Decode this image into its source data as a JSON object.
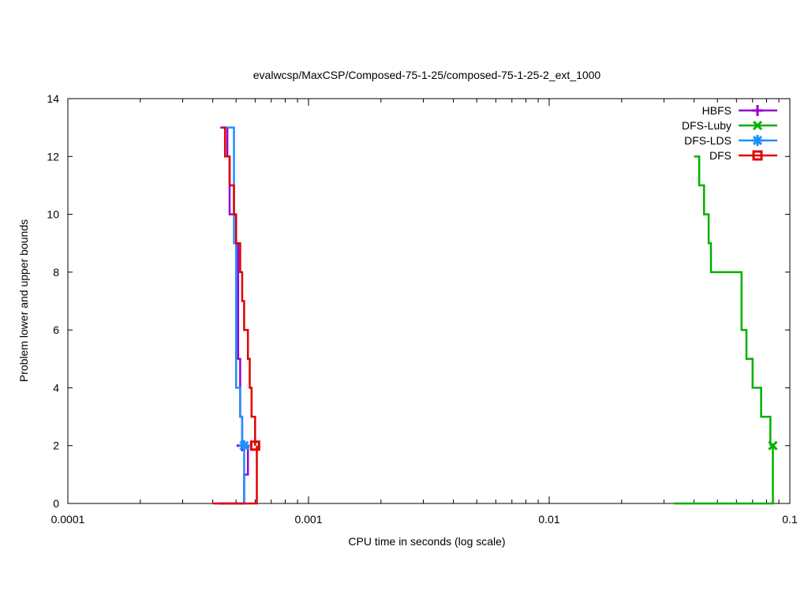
{
  "chart_data": {
    "type": "line",
    "title": "evalwcsp/MaxCSP/Composed-75-1-25/composed-75-1-25-2_ext_1000",
    "xlabel": "CPU time in seconds (log scale)",
    "ylabel": "Problem lower and upper bounds",
    "xscale": "log",
    "xlim": [
      0.0001,
      0.1
    ],
    "ylim": [
      0,
      14
    ],
    "x_ticks": [
      {
        "value": 0.0001,
        "label": "0.0001"
      },
      {
        "value": 0.001,
        "label": "0.001"
      },
      {
        "value": 0.01,
        "label": "0.01"
      },
      {
        "value": 0.1,
        "label": "0.1"
      }
    ],
    "y_ticks": [
      {
        "value": 0,
        "label": "0"
      },
      {
        "value": 2,
        "label": "2"
      },
      {
        "value": 4,
        "label": "4"
      },
      {
        "value": 6,
        "label": "6"
      },
      {
        "value": 8,
        "label": "8"
      },
      {
        "value": 10,
        "label": "10"
      },
      {
        "value": 12,
        "label": "12"
      },
      {
        "value": 14,
        "label": "14"
      }
    ],
    "grid": false,
    "legend": "top-right",
    "series": [
      {
        "name": "HBFS",
        "color": "#9400d3",
        "marker": "plus",
        "marker_point": [
          0.00053,
          2
        ],
        "upper": [
          [
            0.00043,
            13
          ],
          [
            0.00046,
            12
          ],
          [
            0.00047,
            10
          ],
          [
            0.0005,
            9
          ],
          [
            0.00051,
            5
          ],
          [
            0.00052,
            3
          ],
          [
            0.00053,
            2
          ]
        ],
        "lower": [
          [
            0.00043,
            0
          ],
          [
            0.00053,
            0
          ],
          [
            0.00054,
            1
          ],
          [
            0.00056,
            2
          ]
        ]
      },
      {
        "name": "DFS-Luby",
        "color": "#00b000",
        "marker": "x",
        "marker_point": [
          0.085,
          2
        ],
        "upper": [
          [
            0.04,
            12
          ],
          [
            0.042,
            11
          ],
          [
            0.044,
            10
          ],
          [
            0.046,
            9
          ],
          [
            0.047,
            8
          ],
          [
            0.063,
            6
          ],
          [
            0.066,
            5
          ],
          [
            0.07,
            4
          ],
          [
            0.076,
            3
          ],
          [
            0.083,
            2
          ]
        ],
        "lower": [
          [
            0.033,
            0
          ],
          [
            0.084,
            0
          ],
          [
            0.085,
            2
          ]
        ]
      },
      {
        "name": "DFS-LDS",
        "color": "#1e90ff",
        "marker": "star",
        "marker_point": [
          0.00054,
          2
        ],
        "upper": [
          [
            0.00045,
            13
          ],
          [
            0.00049,
            9
          ],
          [
            0.0005,
            4
          ],
          [
            0.00052,
            3
          ],
          [
            0.00053,
            2
          ]
        ],
        "lower": [
          [
            0.00042,
            0
          ],
          [
            0.00054,
            0
          ],
          [
            0.00054,
            2
          ]
        ]
      },
      {
        "name": "DFS",
        "color": "#e00000",
        "marker": "square",
        "marker_point": [
          0.0006,
          2
        ],
        "upper": [
          [
            0.00044,
            13
          ],
          [
            0.00045,
            12
          ],
          [
            0.00047,
            11
          ],
          [
            0.00049,
            10
          ],
          [
            0.0005,
            9
          ],
          [
            0.00052,
            8
          ],
          [
            0.00053,
            7
          ],
          [
            0.00054,
            6
          ],
          [
            0.00056,
            5
          ],
          [
            0.00057,
            4
          ],
          [
            0.00058,
            3
          ],
          [
            0.0006,
            2
          ]
        ],
        "lower": [
          [
            0.0004,
            0
          ],
          [
            0.00061,
            0
          ],
          [
            0.00061,
            2
          ]
        ]
      }
    ]
  }
}
